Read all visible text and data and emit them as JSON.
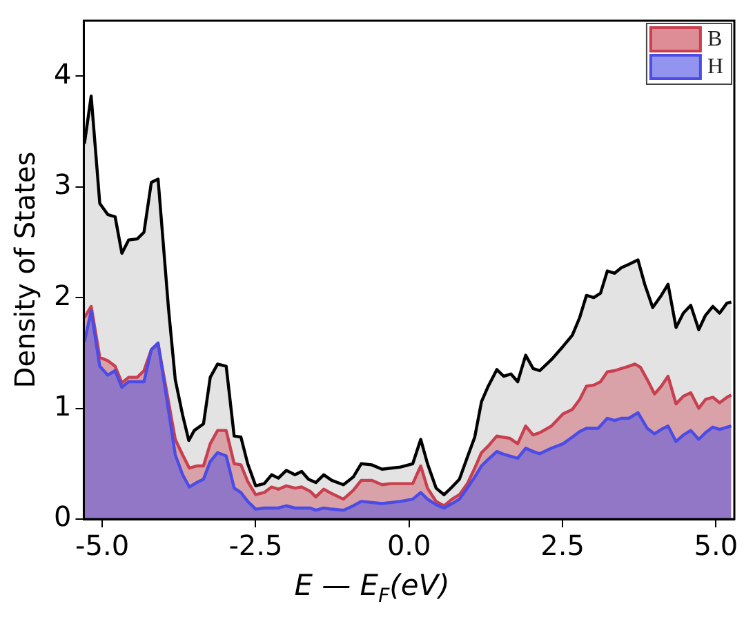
{
  "chart_data": {
    "type": "area",
    "xlabel": "E — E$_{F}$(eV)",
    "ylabel": "Density of States",
    "xlim": [
      -5.3,
      5.3
    ],
    "ylim": [
      0,
      4.5
    ],
    "xticks": [
      {
        "value": -5,
        "label": "-5.0"
      },
      {
        "value": -2.5,
        "label": "-2.5"
      },
      {
        "value": 0,
        "label": "0.0"
      },
      {
        "value": 2.5,
        "label": "2.5"
      },
      {
        "value": 5,
        "label": "5.0"
      }
    ],
    "yticks": [
      0,
      1,
      2,
      3,
      4
    ],
    "grid": false,
    "legend": "top right",
    "series": [
      {
        "color": "#000000",
        "x": [
          -5.29,
          -5.18,
          -5.04,
          -4.91,
          -4.79,
          -4.68,
          -4.57,
          -4.43,
          -4.32,
          -4.2,
          -4.09,
          -3.92,
          -3.81,
          -3.69,
          -3.59,
          -3.5,
          -3.35,
          -3.24,
          -3.12,
          -2.98,
          -2.85,
          -2.74,
          -2.63,
          -2.5,
          -2.36,
          -2.24,
          -2.13,
          -2.0,
          -1.86,
          -1.75,
          -1.64,
          -1.52,
          -1.39,
          -1.26,
          -1.07,
          -0.91,
          -0.78,
          -0.61,
          -0.44,
          -0.3,
          -0.14,
          0.06,
          0.19,
          0.3,
          0.44,
          0.57,
          0.7,
          0.82,
          0.95,
          1.07,
          1.18,
          1.29,
          1.43,
          1.54,
          1.66,
          1.77,
          1.9,
          2.02,
          2.13,
          2.32,
          2.51,
          2.66,
          2.78,
          2.89,
          3.01,
          3.12,
          3.23,
          3.35,
          3.46,
          3.58,
          3.73,
          3.84,
          3.97,
          4.11,
          4.22,
          4.35,
          4.47,
          4.59,
          4.72,
          4.83,
          4.95,
          5.06,
          5.18,
          5.25
        ],
        "values": [
          3.39,
          3.82,
          2.85,
          2.75,
          2.73,
          2.4,
          2.52,
          2.53,
          2.59,
          3.04,
          3.07,
          1.9,
          1.26,
          0.94,
          0.71,
          0.8,
          0.86,
          1.28,
          1.4,
          1.38,
          0.75,
          0.74,
          0.5,
          0.3,
          0.32,
          0.4,
          0.37,
          0.44,
          0.4,
          0.43,
          0.36,
          0.33,
          0.4,
          0.35,
          0.31,
          0.38,
          0.5,
          0.49,
          0.45,
          0.46,
          0.47,
          0.5,
          0.72,
          0.5,
          0.28,
          0.22,
          0.29,
          0.36,
          0.56,
          0.74,
          1.06,
          1.2,
          1.35,
          1.29,
          1.31,
          1.24,
          1.48,
          1.36,
          1.34,
          1.44,
          1.56,
          1.66,
          1.82,
          2.02,
          2.0,
          2.04,
          2.24,
          2.22,
          2.27,
          2.3,
          2.34,
          2.12,
          1.91,
          2.02,
          2.12,
          1.73,
          1.86,
          1.93,
          1.71,
          1.84,
          1.92,
          1.86,
          1.95,
          1.96
        ]
      },
      {
        "name": "B",
        "color": "#c8404f",
        "x": [
          -5.29,
          -5.18,
          -5.04,
          -4.91,
          -4.79,
          -4.68,
          -4.57,
          -4.43,
          -4.32,
          -4.2,
          -4.09,
          -3.92,
          -3.81,
          -3.69,
          -3.58,
          -3.46,
          -3.35,
          -3.24,
          -3.12,
          -2.98,
          -2.85,
          -2.74,
          -2.63,
          -2.5,
          -2.36,
          -2.24,
          -2.13,
          -2.0,
          -1.86,
          -1.75,
          -1.61,
          -1.52,
          -1.39,
          -1.26,
          -1.07,
          -0.91,
          -0.78,
          -0.61,
          -0.44,
          -0.3,
          -0.14,
          0.06,
          0.19,
          0.3,
          0.44,
          0.57,
          0.7,
          0.82,
          0.95,
          1.07,
          1.18,
          1.29,
          1.43,
          1.52,
          1.64,
          1.77,
          1.9,
          2.02,
          2.13,
          2.32,
          2.51,
          2.66,
          2.78,
          2.89,
          3.01,
          3.12,
          3.23,
          3.35,
          3.46,
          3.58,
          3.68,
          3.77,
          3.88,
          4.0,
          4.11,
          4.22,
          4.35,
          4.47,
          4.59,
          4.72,
          4.83,
          4.95,
          5.06,
          5.18,
          5.25
        ],
        "values": [
          1.82,
          1.92,
          1.46,
          1.43,
          1.38,
          1.23,
          1.28,
          1.28,
          1.34,
          1.53,
          1.58,
          1.06,
          0.72,
          0.58,
          0.46,
          0.48,
          0.48,
          0.68,
          0.8,
          0.8,
          0.5,
          0.49,
          0.34,
          0.22,
          0.24,
          0.29,
          0.27,
          0.3,
          0.28,
          0.29,
          0.25,
          0.2,
          0.27,
          0.23,
          0.18,
          0.26,
          0.35,
          0.35,
          0.31,
          0.32,
          0.32,
          0.32,
          0.48,
          0.28,
          0.16,
          0.12,
          0.18,
          0.22,
          0.32,
          0.46,
          0.6,
          0.66,
          0.75,
          0.74,
          0.73,
          0.68,
          0.84,
          0.76,
          0.78,
          0.84,
          0.95,
          0.99,
          1.08,
          1.2,
          1.21,
          1.24,
          1.33,
          1.34,
          1.36,
          1.38,
          1.4,
          1.37,
          1.26,
          1.13,
          1.2,
          1.29,
          1.04,
          1.11,
          1.14,
          1.0,
          1.08,
          1.1,
          1.05,
          1.1,
          1.12
        ]
      },
      {
        "name": "H",
        "color": "#4b4be6",
        "x": [
          -5.29,
          -5.18,
          -5.04,
          -4.91,
          -4.79,
          -4.68,
          -4.57,
          -4.43,
          -4.32,
          -4.2,
          -4.09,
          -3.92,
          -3.81,
          -3.69,
          -3.58,
          -3.46,
          -3.35,
          -3.24,
          -3.12,
          -2.98,
          -2.85,
          -2.74,
          -2.63,
          -2.5,
          -2.36,
          -2.13,
          -2.0,
          -1.86,
          -1.61,
          -1.52,
          -1.39,
          -1.26,
          -1.07,
          -0.91,
          -0.78,
          -0.44,
          -0.14,
          0.06,
          0.19,
          0.3,
          0.44,
          0.57,
          0.7,
          0.82,
          0.95,
          1.07,
          1.18,
          1.29,
          1.43,
          1.52,
          1.64,
          1.77,
          1.9,
          2.02,
          2.13,
          2.32,
          2.51,
          2.66,
          2.78,
          2.89,
          3.08,
          3.23,
          3.35,
          3.46,
          3.58,
          3.73,
          3.88,
          4.0,
          4.11,
          4.22,
          4.35,
          4.47,
          4.59,
          4.72,
          4.83,
          4.95,
          5.06,
          5.18,
          5.25
        ],
        "values": [
          1.6,
          1.88,
          1.38,
          1.3,
          1.34,
          1.19,
          1.24,
          1.24,
          1.24,
          1.53,
          1.59,
          0.98,
          0.58,
          0.4,
          0.29,
          0.33,
          0.36,
          0.52,
          0.6,
          0.57,
          0.28,
          0.24,
          0.16,
          0.09,
          0.1,
          0.1,
          0.12,
          0.1,
          0.1,
          0.08,
          0.1,
          0.09,
          0.08,
          0.12,
          0.16,
          0.14,
          0.16,
          0.18,
          0.24,
          0.18,
          0.13,
          0.1,
          0.14,
          0.18,
          0.28,
          0.38,
          0.48,
          0.54,
          0.61,
          0.59,
          0.57,
          0.55,
          0.64,
          0.61,
          0.59,
          0.64,
          0.68,
          0.74,
          0.79,
          0.82,
          0.82,
          0.91,
          0.89,
          0.91,
          0.91,
          0.96,
          0.82,
          0.77,
          0.81,
          0.84,
          0.7,
          0.76,
          0.8,
          0.72,
          0.78,
          0.83,
          0.81,
          0.83,
          0.84
        ]
      }
    ]
  }
}
